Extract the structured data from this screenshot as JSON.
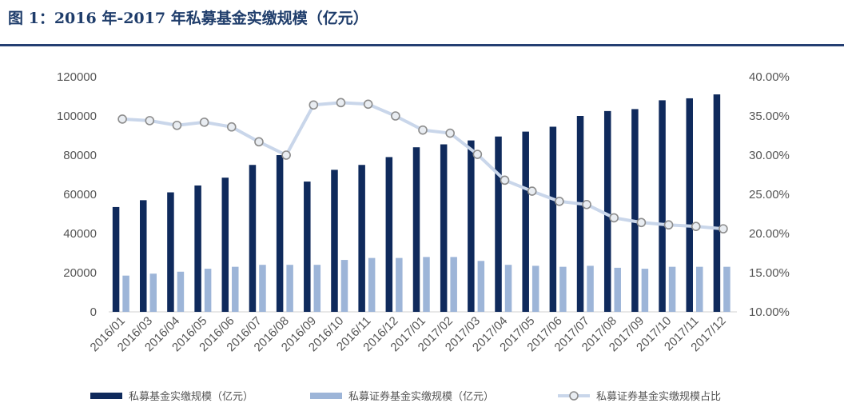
{
  "title": "图 1：2016 年-2017 年私募基金实缴规模（亿元）",
  "colors": {
    "primary_bar": "#0f2a5c",
    "secondary_bar": "#9db5d8",
    "line": "#c9d6ea",
    "marker_fill": "#e9edf2",
    "marker_stroke": "#8c8c8c",
    "title": "#1f3d6b",
    "rule": "#243e72"
  },
  "chart_data": {
    "type": "bar",
    "categories": [
      "2016/01",
      "2016/03",
      "2016/04",
      "2016/05",
      "2016/06",
      "2016/07",
      "2016/08",
      "2016/09",
      "2016/10",
      "2016/11",
      "2016/12",
      "2017/01",
      "2017/02",
      "2017/03",
      "2017/04",
      "2017/05",
      "2017/06",
      "2017/07",
      "2017/08",
      "2017/09",
      "2017/10",
      "2017/11",
      "2017/12"
    ],
    "series": [
      {
        "name": "私募基金实缴规模（亿元）",
        "type": "bar",
        "axis": "left",
        "values": [
          53500,
          57000,
          61000,
          64500,
          68500,
          75000,
          80000,
          66500,
          72500,
          75000,
          79000,
          84000,
          85500,
          87500,
          89500,
          92000,
          94500,
          100000,
          102500,
          103500,
          108000,
          109000,
          111000
        ]
      },
      {
        "name": "私募证券基金实缴规模（亿元）",
        "type": "bar",
        "axis": "left",
        "values": [
          18500,
          19500,
          20500,
          22000,
          23000,
          24000,
          24000,
          24000,
          26500,
          27500,
          27500,
          28000,
          28000,
          26000,
          24000,
          23500,
          23000,
          23500,
          22500,
          22000,
          23000,
          23000,
          23000
        ]
      },
      {
        "name": "私募证券基金实缴规模占比",
        "type": "line",
        "axis": "right",
        "values": [
          34.6,
          34.4,
          33.8,
          34.2,
          33.6,
          31.7,
          30.0,
          36.4,
          36.7,
          36.5,
          35.0,
          33.2,
          32.8,
          30.1,
          26.8,
          25.4,
          24.1,
          23.7,
          22.0,
          21.4,
          21.1,
          20.9,
          20.6
        ]
      }
    ],
    "y_left": {
      "range": [
        0,
        120000
      ],
      "ticks": [
        "0",
        "20000",
        "40000",
        "60000",
        "80000",
        "100000",
        "120000"
      ]
    },
    "y_right": {
      "range": [
        10,
        40
      ],
      "ticks": [
        "10.00%",
        "15.00%",
        "20.00%",
        "25.00%",
        "30.00%",
        "35.00%",
        "40.00%"
      ]
    },
    "grid": false,
    "legend_position": "bottom"
  }
}
